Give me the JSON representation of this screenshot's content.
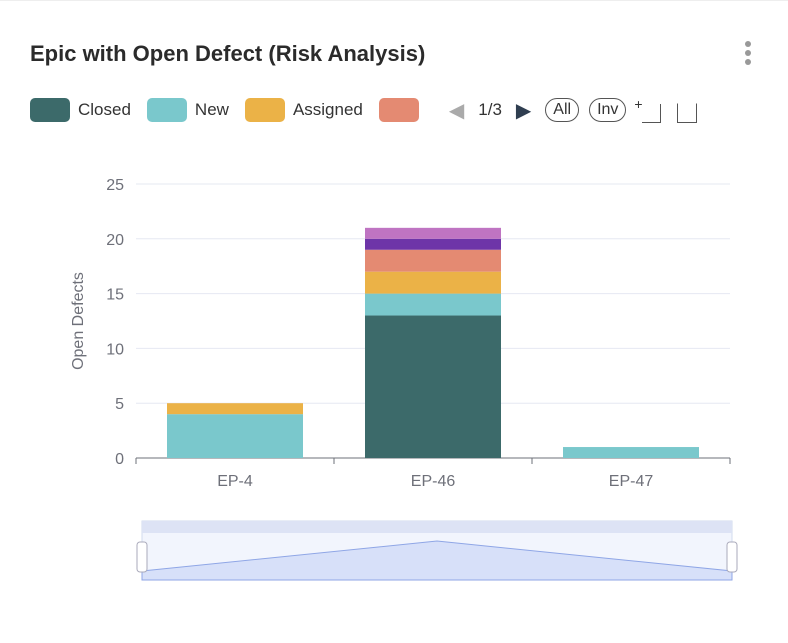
{
  "title": "Epic with Open Defect (Risk Analysis)",
  "legend": {
    "page": "1/3",
    "all_label": "All",
    "inv_label": "Inv"
  },
  "chart_data": {
    "type": "bar",
    "stacked": true,
    "categories": [
      "EP-4",
      "EP-46",
      "EP-47"
    ],
    "ylabel": "Open Defects",
    "xlabel": "",
    "ylim": [
      0,
      25
    ],
    "yticks": [
      0,
      5,
      10,
      15,
      20,
      25
    ],
    "grid": true,
    "legend_placement": "top-left",
    "series": [
      {
        "name": "Closed",
        "color": "#3c6a6a",
        "values": [
          0,
          13,
          0
        ]
      },
      {
        "name": "New",
        "color": "#7ac8cc",
        "values": [
          4,
          2,
          1
        ]
      },
      {
        "name": "Assigned",
        "color": "#ebb247",
        "values": [
          1,
          2,
          0
        ]
      },
      {
        "color": "#e48a72",
        "values": [
          0,
          2,
          0
        ]
      },
      {
        "color": "#6e35a8",
        "values": [
          0,
          1,
          0
        ]
      },
      {
        "color": "#bf74c2",
        "values": [
          0,
          1,
          0
        ]
      }
    ]
  }
}
